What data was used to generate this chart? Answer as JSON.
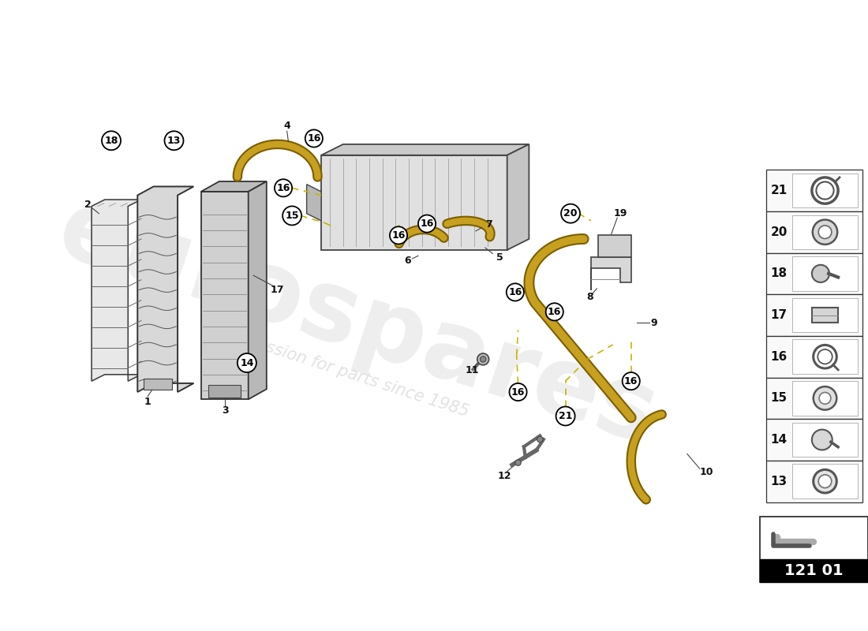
{
  "bg_color": "#ffffff",
  "part_code": "121 01",
  "watermark_text": "eurospares",
  "watermark_sub": "a passion for parts since 1985",
  "panel_parts": [
    21,
    20,
    18,
    17,
    16,
    15,
    14,
    13
  ],
  "callout_fill": "#ffffff",
  "callout_edge": "#000000",
  "dashed_color": "#c8b400",
  "hose_color": "#c8a020",
  "hose_dark": "#7a5f00",
  "line_color": "#222222",
  "dim_color": "#888888"
}
